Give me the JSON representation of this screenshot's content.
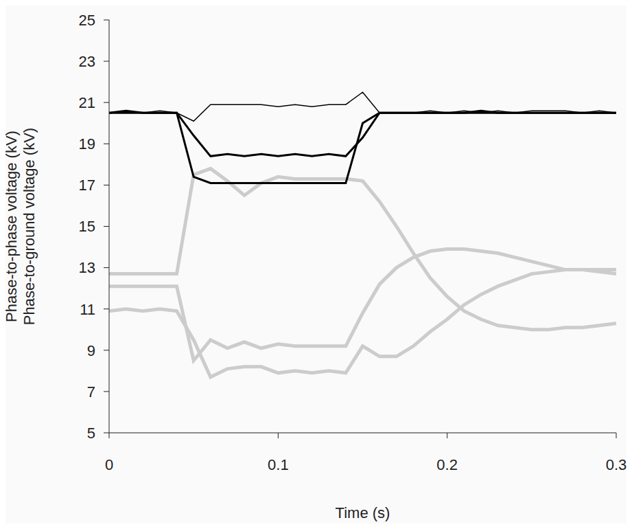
{
  "chart_data": {
    "type": "line",
    "x_label": "Time (s)",
    "y_label": [
      "Phase-to-phase voltage (kV)",
      "Phase-to-ground voltage (kV)"
    ],
    "x": [
      0,
      0.01,
      0.02,
      0.03,
      0.04,
      0.05,
      0.06,
      0.07,
      0.08,
      0.09,
      0.1,
      0.11,
      0.12,
      0.13,
      0.14,
      0.15,
      0.16,
      0.17,
      0.18,
      0.19,
      0.2,
      0.21,
      0.22,
      0.23,
      0.24,
      0.25,
      0.26,
      0.27,
      0.28,
      0.29,
      0.3
    ],
    "xlim": [
      0,
      0.3
    ],
    "xticks": [
      0,
      0.1,
      0.2,
      0.3
    ],
    "ylim": [
      5,
      25
    ],
    "yticks": [
      5,
      7,
      9,
      11,
      13,
      15,
      17,
      19,
      21,
      23,
      25
    ],
    "grid": false,
    "series": [
      {
        "color": "#000000",
        "values": [
          20.5,
          20.5,
          20.5,
          20.6,
          20.5,
          20.1,
          20.9,
          20.9,
          20.9,
          20.9,
          20.8,
          20.9,
          20.8,
          20.9,
          20.9,
          21.5,
          20.5,
          20.5,
          20.5,
          20.6,
          20.5,
          20.6,
          20.5,
          20.6,
          20.5,
          20.6,
          20.6,
          20.6,
          20.5,
          20.6,
          20.5
        ]
      },
      {
        "color": "#000000",
        "values": [
          20.5,
          20.6,
          20.5,
          20.5,
          20.5,
          19.4,
          18.4,
          18.5,
          18.4,
          18.5,
          18.4,
          18.5,
          18.4,
          18.5,
          18.4,
          19.3,
          20.5,
          20.5,
          20.5,
          20.5,
          20.5,
          20.5,
          20.6,
          20.5,
          20.5,
          20.5,
          20.5,
          20.5,
          20.5,
          20.5,
          20.5
        ]
      },
      {
        "color": "#000000",
        "values": [
          20.5,
          20.5,
          20.5,
          20.5,
          20.5,
          17.4,
          17.1,
          17.1,
          17.1,
          17.1,
          17.1,
          17.1,
          17.1,
          17.1,
          17.1,
          20.0,
          20.5,
          20.5,
          20.5,
          20.5,
          20.5,
          20.5,
          20.5,
          20.5,
          20.5,
          20.5,
          20.5,
          20.5,
          20.5,
          20.5,
          20.5
        ]
      },
      {
        "color": "#cccccc",
        "values": [
          12.7,
          12.7,
          12.7,
          12.7,
          12.7,
          17.5,
          17.8,
          17.2,
          16.5,
          17.1,
          17.4,
          17.3,
          17.3,
          17.3,
          17.3,
          17.2,
          16.2,
          15.0,
          13.7,
          12.5,
          11.6,
          10.9,
          10.5,
          10.2,
          10.1,
          10.0,
          10.0,
          10.1,
          10.1,
          10.2,
          10.3
        ]
      },
      {
        "color": "#cccccc",
        "values": [
          12.1,
          12.1,
          12.1,
          12.1,
          12.1,
          8.5,
          9.5,
          9.1,
          9.4,
          9.1,
          9.3,
          9.2,
          9.2,
          9.2,
          9.2,
          10.8,
          12.2,
          13.0,
          13.5,
          13.8,
          13.9,
          13.9,
          13.8,
          13.7,
          13.5,
          13.3,
          13.1,
          12.9,
          12.9,
          12.8,
          12.7
        ]
      },
      {
        "color": "#cccccc",
        "values": [
          10.9,
          11.0,
          10.9,
          11.0,
          10.9,
          9.5,
          7.7,
          8.1,
          8.2,
          8.2,
          7.9,
          8.0,
          7.9,
          8.0,
          7.9,
          9.2,
          8.7,
          8.7,
          9.2,
          9.9,
          10.5,
          11.2,
          11.7,
          12.1,
          12.4,
          12.7,
          12.8,
          12.9,
          12.9,
          12.9,
          12.9
        ]
      }
    ]
  }
}
